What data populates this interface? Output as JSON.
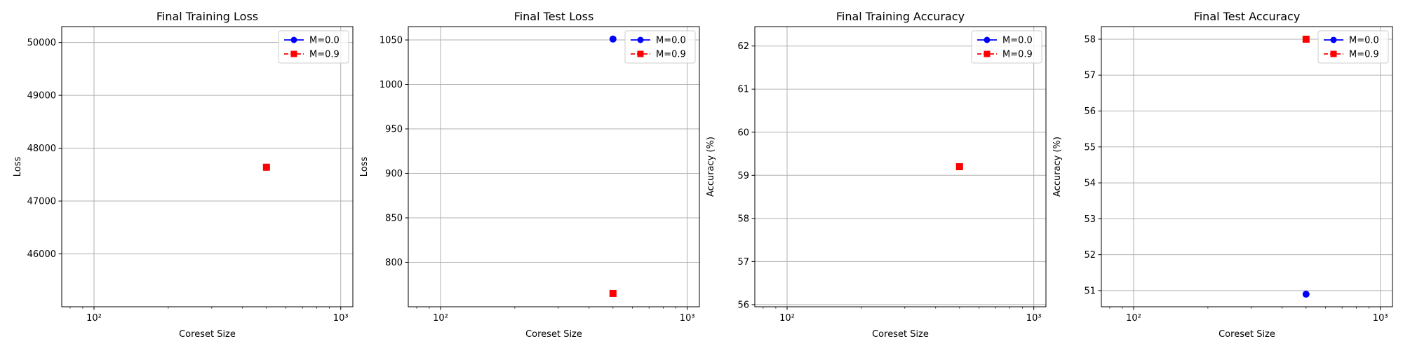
{
  "colors": {
    "m0": "#0000ff",
    "m9": "#ff0000",
    "grid": "#b0b0b0",
    "axes": "#000000"
  },
  "legend": [
    {
      "label": "M=0.0",
      "color": "#0000ff",
      "marker": "circle",
      "linestyle": "solid"
    },
    {
      "label": "M=0.9",
      "color": "#ff0000",
      "marker": "square",
      "linestyle": "dashed"
    }
  ],
  "chart_data": [
    {
      "type": "line",
      "title": "Final Training Loss",
      "xlabel": "Coreset Size",
      "ylabel": "Loss",
      "xscale": "log",
      "xlim": [
        74,
        1120
      ],
      "xticks": [
        100,
        1000
      ],
      "xtick_labels": [
        "10²",
        "10³"
      ],
      "ylim": [
        45000,
        50300
      ],
      "yticks": [
        46000,
        47000,
        48000,
        49000,
        50000
      ],
      "ytick_labels": [
        "46000",
        "47000",
        "48000",
        "49000",
        "50000"
      ],
      "grid": true,
      "legend_position": "top-right",
      "series": [
        {
          "name": "M=0.0",
          "x": [
            500
          ],
          "y": [
            47640
          ]
        },
        {
          "name": "M=0.9",
          "x": [
            500
          ],
          "y": [
            47640
          ]
        }
      ]
    },
    {
      "type": "line",
      "title": "Final Test Loss",
      "xlabel": "Coreset Size",
      "ylabel": "Loss",
      "xscale": "log",
      "xlim": [
        74,
        1120
      ],
      "xticks": [
        100,
        1000
      ],
      "xtick_labels": [
        "10²",
        "10³"
      ],
      "ylim": [
        750,
        1065
      ],
      "yticks": [
        800,
        850,
        900,
        950,
        1000,
        1050
      ],
      "ytick_labels": [
        "800",
        "850",
        "900",
        "950",
        "1000",
        "1050"
      ],
      "grid": true,
      "legend_position": "top-right",
      "series": [
        {
          "name": "M=0.0",
          "x": [
            500
          ],
          "y": [
            1051
          ]
        },
        {
          "name": "M=0.9",
          "x": [
            500
          ],
          "y": [
            765
          ]
        }
      ]
    },
    {
      "type": "line",
      "title": "Final Training Accuracy",
      "xlabel": "Coreset Size",
      "ylabel": "Accuracy (%)",
      "xscale": "log",
      "xlim": [
        74,
        1120
      ],
      "xticks": [
        100,
        1000
      ],
      "xtick_labels": [
        "10²",
        "10³"
      ],
      "ylim": [
        55.95,
        62.45
      ],
      "yticks": [
        56,
        57,
        58,
        59,
        60,
        61,
        62
      ],
      "ytick_labels": [
        "56",
        "57",
        "58",
        "59",
        "60",
        "61",
        "62"
      ],
      "grid": true,
      "legend_position": "top-right",
      "series": [
        {
          "name": "M=0.0",
          "x": [
            500
          ],
          "y": [
            59.2
          ]
        },
        {
          "name": "M=0.9",
          "x": [
            500
          ],
          "y": [
            59.2
          ]
        }
      ]
    },
    {
      "type": "line",
      "title": "Final Test Accuracy",
      "xlabel": "Coreset Size",
      "ylabel": "Accuracy (%)",
      "xscale": "log",
      "xlim": [
        74,
        1120
      ],
      "xticks": [
        100,
        1000
      ],
      "xtick_labels": [
        "10²",
        "10³"
      ],
      "ylim": [
        50.55,
        58.35
      ],
      "yticks": [
        51,
        52,
        53,
        54,
        55,
        56,
        57,
        58
      ],
      "ytick_labels": [
        "51",
        "52",
        "53",
        "54",
        "55",
        "56",
        "57",
        "58"
      ],
      "grid": true,
      "legend_position": "top-right",
      "series": [
        {
          "name": "M=0.0",
          "x": [
            500
          ],
          "y": [
            50.9
          ]
        },
        {
          "name": "M=0.9",
          "x": [
            500
          ],
          "y": [
            58.0
          ]
        }
      ]
    }
  ]
}
